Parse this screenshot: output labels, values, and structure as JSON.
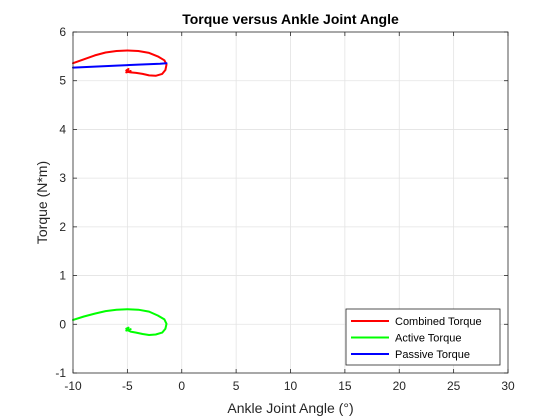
{
  "chart_data": {
    "type": "line",
    "title": "Torque versus Ankle Joint Angle",
    "xlabel": "Ankle Joint Angle (°)",
    "ylabel": "Torque (N*m)",
    "xlim": [
      -10,
      30
    ],
    "ylim": [
      -1,
      6
    ],
    "xticks": [
      -10,
      -5,
      0,
      5,
      10,
      15,
      20,
      25,
      30
    ],
    "yticks": [
      -1,
      0,
      1,
      2,
      3,
      4,
      5,
      6
    ],
    "grid": true,
    "legend_position": "bottom-right",
    "series": [
      {
        "name": "Combined Torque",
        "color": "#ff0000",
        "x": [
          -10,
          -9,
          -8,
          -7,
          -6,
          -5,
          -4,
          -3,
          -2.2,
          -1.6,
          -1.4,
          -1.5,
          -1.8,
          -2.4,
          -3,
          -3.6,
          -4.2,
          -4.7,
          -5,
          -5.1,
          -4.9,
          -5.1,
          -4.7
        ],
        "y": [
          5.36,
          5.44,
          5.52,
          5.58,
          5.61,
          5.62,
          5.61,
          5.57,
          5.5,
          5.42,
          5.33,
          5.22,
          5.14,
          5.1,
          5.11,
          5.14,
          5.16,
          5.17,
          5.18,
          5.21,
          5.24,
          5.17,
          5.2
        ]
      },
      {
        "name": "Active Torque",
        "color": "#00ff00",
        "x": [
          -10,
          -9,
          -8,
          -7,
          -6,
          -5,
          -4,
          -3,
          -2.2,
          -1.6,
          -1.4,
          -1.5,
          -1.8,
          -2.4,
          -3,
          -3.6,
          -4.2,
          -4.7,
          -5,
          -5.1,
          -4.9,
          -5.1,
          -4.7
        ],
        "y": [
          0.09,
          0.16,
          0.22,
          0.27,
          0.3,
          0.31,
          0.3,
          0.26,
          0.18,
          0.1,
          0.01,
          -0.09,
          -0.17,
          -0.21,
          -0.22,
          -0.2,
          -0.17,
          -0.15,
          -0.12,
          -0.09,
          -0.07,
          -0.13,
          -0.1
        ]
      },
      {
        "name": "Passive Torque",
        "color": "#0000ff",
        "x": [
          -10,
          -8,
          -6,
          -4,
          -2,
          -1.4
        ],
        "y": [
          5.27,
          5.29,
          5.31,
          5.33,
          5.35,
          5.36
        ]
      }
    ]
  }
}
